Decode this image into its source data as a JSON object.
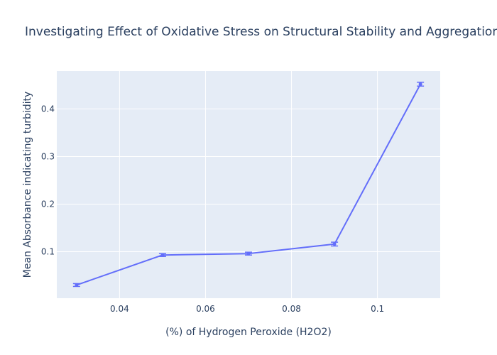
{
  "chart_data": {
    "type": "line",
    "title": "Investigating Effect of Oxidative Stress on Structural Stability and Aggregation Behavior",
    "xlabel": "(%) of Hydrogen Peroxide (H2O2)",
    "ylabel": "Mean Absorbance indicating turbidity",
    "x": [
      0.03,
      0.05,
      0.07,
      0.09,
      0.11
    ],
    "series": [
      {
        "values": [
          0.03,
          0.093,
          0.096,
          0.116,
          0.452
        ],
        "error": [
          0.003,
          0.003,
          0.003,
          0.004,
          0.004
        ]
      }
    ],
    "xlim": [
      0.0254,
      0.1146
    ],
    "ylim": [
      0.0023,
      0.4797
    ],
    "xticks": [
      {
        "value": 0.04,
        "label": "0.04"
      },
      {
        "value": 0.06,
        "label": "0.06"
      },
      {
        "value": 0.08,
        "label": "0.08"
      },
      {
        "value": 0.1,
        "label": "0.1"
      }
    ],
    "yticks": [
      {
        "value": 0.1,
        "label": "0.1"
      },
      {
        "value": 0.2,
        "label": "0.2"
      },
      {
        "value": 0.3,
        "label": "0.3"
      },
      {
        "value": 0.4,
        "label": "0.4"
      }
    ],
    "grid": true,
    "legend": "none",
    "colors": {
      "plot_background": "#e5ecf6",
      "grid": "#ffffff",
      "series": "#636efa",
      "text": "#2a3f5f"
    }
  }
}
